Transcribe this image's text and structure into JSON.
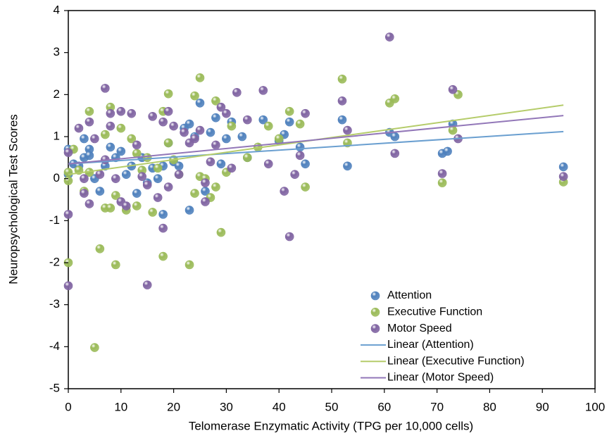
{
  "chart_data": {
    "type": "scatter",
    "x_label": "Telomerase Enzymatic Activity (TPG per 10,000 cells)",
    "y_label": "Neuropsychological Test Scores",
    "xlim": [
      0,
      100
    ],
    "ylim": [
      -5,
      4
    ],
    "xticks": [
      0,
      10,
      20,
      30,
      40,
      50,
      60,
      70,
      80,
      90,
      100
    ],
    "yticks": [
      -5,
      -4,
      -3,
      -2,
      -1,
      0,
      1,
      2,
      3,
      4
    ],
    "series": [
      {
        "name": "Attention",
        "type": "scatter",
        "color": "#4f81bd",
        "x": [
          0,
          0,
          1,
          2,
          3,
          3,
          4,
          4,
          5,
          6,
          7,
          8,
          9,
          10,
          11,
          12,
          13,
          14,
          15,
          16,
          17,
          18,
          18,
          19,
          20,
          21,
          22,
          23,
          23,
          24,
          25,
          26,
          27,
          28,
          29,
          30,
          31,
          33,
          34,
          37,
          40,
          41,
          42,
          44,
          45,
          52,
          53,
          61,
          62,
          71,
          72,
          73,
          94
        ],
        "values": [
          0.7,
          0.1,
          0.35,
          0.3,
          0.5,
          0.95,
          0.7,
          0.55,
          0.0,
          -0.3,
          0.3,
          0.75,
          0.5,
          0.65,
          0.1,
          0.3,
          -0.35,
          0.5,
          -0.1,
          0.25,
          0.0,
          0.3,
          -0.85,
          0.85,
          0.4,
          0.3,
          1.2,
          -0.75,
          1.3,
          1.0,
          1.8,
          -0.3,
          1.1,
          1.45,
          0.35,
          0.95,
          1.35,
          1.0,
          0.5,
          1.4,
          0.9,
          1.05,
          1.35,
          0.75,
          0.35,
          1.4,
          0.3,
          1.1,
          1.0,
          0.6,
          0.65,
          1.3,
          0.28
        ]
      },
      {
        "name": "Executive Function",
        "type": "scatter",
        "color": "#9bbb59",
        "x": [
          0,
          0,
          0,
          1,
          2,
          3,
          4,
          4,
          5,
          6,
          7,
          7,
          8,
          8,
          9,
          9,
          10,
          11,
          12,
          13,
          13,
          14,
          15,
          16,
          17,
          18,
          18,
          19,
          19,
          20,
          21,
          23,
          24,
          24,
          25,
          25,
          26,
          27,
          28,
          28,
          29,
          30,
          31,
          34,
          36,
          38,
          40,
          42,
          44,
          45,
          52,
          53,
          61,
          62,
          71,
          73,
          74,
          94
        ],
        "values": [
          0.15,
          -2.0,
          -0.05,
          0.7,
          0.2,
          -0.3,
          1.6,
          0.15,
          -4.02,
          -1.67,
          1.05,
          -0.7,
          1.7,
          -0.7,
          -2.05,
          -0.4,
          1.2,
          -0.75,
          0.95,
          0.6,
          -0.65,
          0.2,
          0.5,
          -0.8,
          0.25,
          1.6,
          -1.85,
          2.02,
          0.85,
          0.45,
          0.1,
          -2.05,
          1.97,
          -0.35,
          2.4,
          0.05,
          0.0,
          -0.45,
          -0.2,
          1.85,
          -1.28,
          0.15,
          1.25,
          0.5,
          0.75,
          1.25,
          0.95,
          1.6,
          1.3,
          -0.2,
          2.37,
          0.85,
          1.8,
          1.9,
          -0.1,
          1.15,
          2.0,
          -0.08
        ]
      },
      {
        "name": "Motor Speed",
        "type": "scatter",
        "color": "#8064a2",
        "x": [
          0,
          0,
          0,
          2,
          3,
          3,
          4,
          4,
          5,
          6,
          7,
          7,
          8,
          8,
          9,
          10,
          10,
          11,
          12,
          13,
          14,
          15,
          15,
          16,
          17,
          18,
          18,
          19,
          19,
          20,
          21,
          22,
          23,
          24,
          25,
          26,
          26,
          27,
          28,
          29,
          30,
          31,
          32,
          34,
          37,
          38,
          41,
          42,
          43,
          44,
          45,
          52,
          53,
          61,
          62,
          71,
          73,
          74,
          94
        ],
        "values": [
          0.62,
          -0.85,
          -2.55,
          1.2,
          -0.35,
          0.0,
          1.35,
          -0.6,
          0.95,
          0.1,
          2.15,
          0.45,
          1.25,
          1.55,
          0.0,
          -0.55,
          1.6,
          -0.65,
          1.55,
          0.8,
          0.05,
          -0.15,
          -2.53,
          1.48,
          -0.45,
          1.35,
          -1.18,
          1.6,
          -0.2,
          1.25,
          0.1,
          1.1,
          0.85,
          0.95,
          1.15,
          -0.1,
          -0.55,
          0.4,
          0.8,
          1.7,
          1.55,
          0.25,
          2.05,
          1.4,
          2.1,
          0.35,
          -0.3,
          -1.38,
          0.1,
          0.55,
          1.55,
          1.85,
          1.15,
          3.37,
          0.6,
          0.12,
          2.12,
          0.95,
          0.05
        ]
      },
      {
        "name": "Linear (Attention)",
        "type": "line",
        "color": "#6a9fd0",
        "x": [
          0,
          94
        ],
        "values": [
          0.35,
          1.12
        ]
      },
      {
        "name": "Linear (Executive Function)",
        "type": "line",
        "color": "#b5cc6a",
        "x": [
          0,
          94
        ],
        "values": [
          0.1,
          1.75
        ]
      },
      {
        "name": "Linear (Motor Speed)",
        "type": "line",
        "color": "#9277b8",
        "x": [
          0,
          94
        ],
        "values": [
          0.35,
          1.5
        ]
      }
    ]
  }
}
